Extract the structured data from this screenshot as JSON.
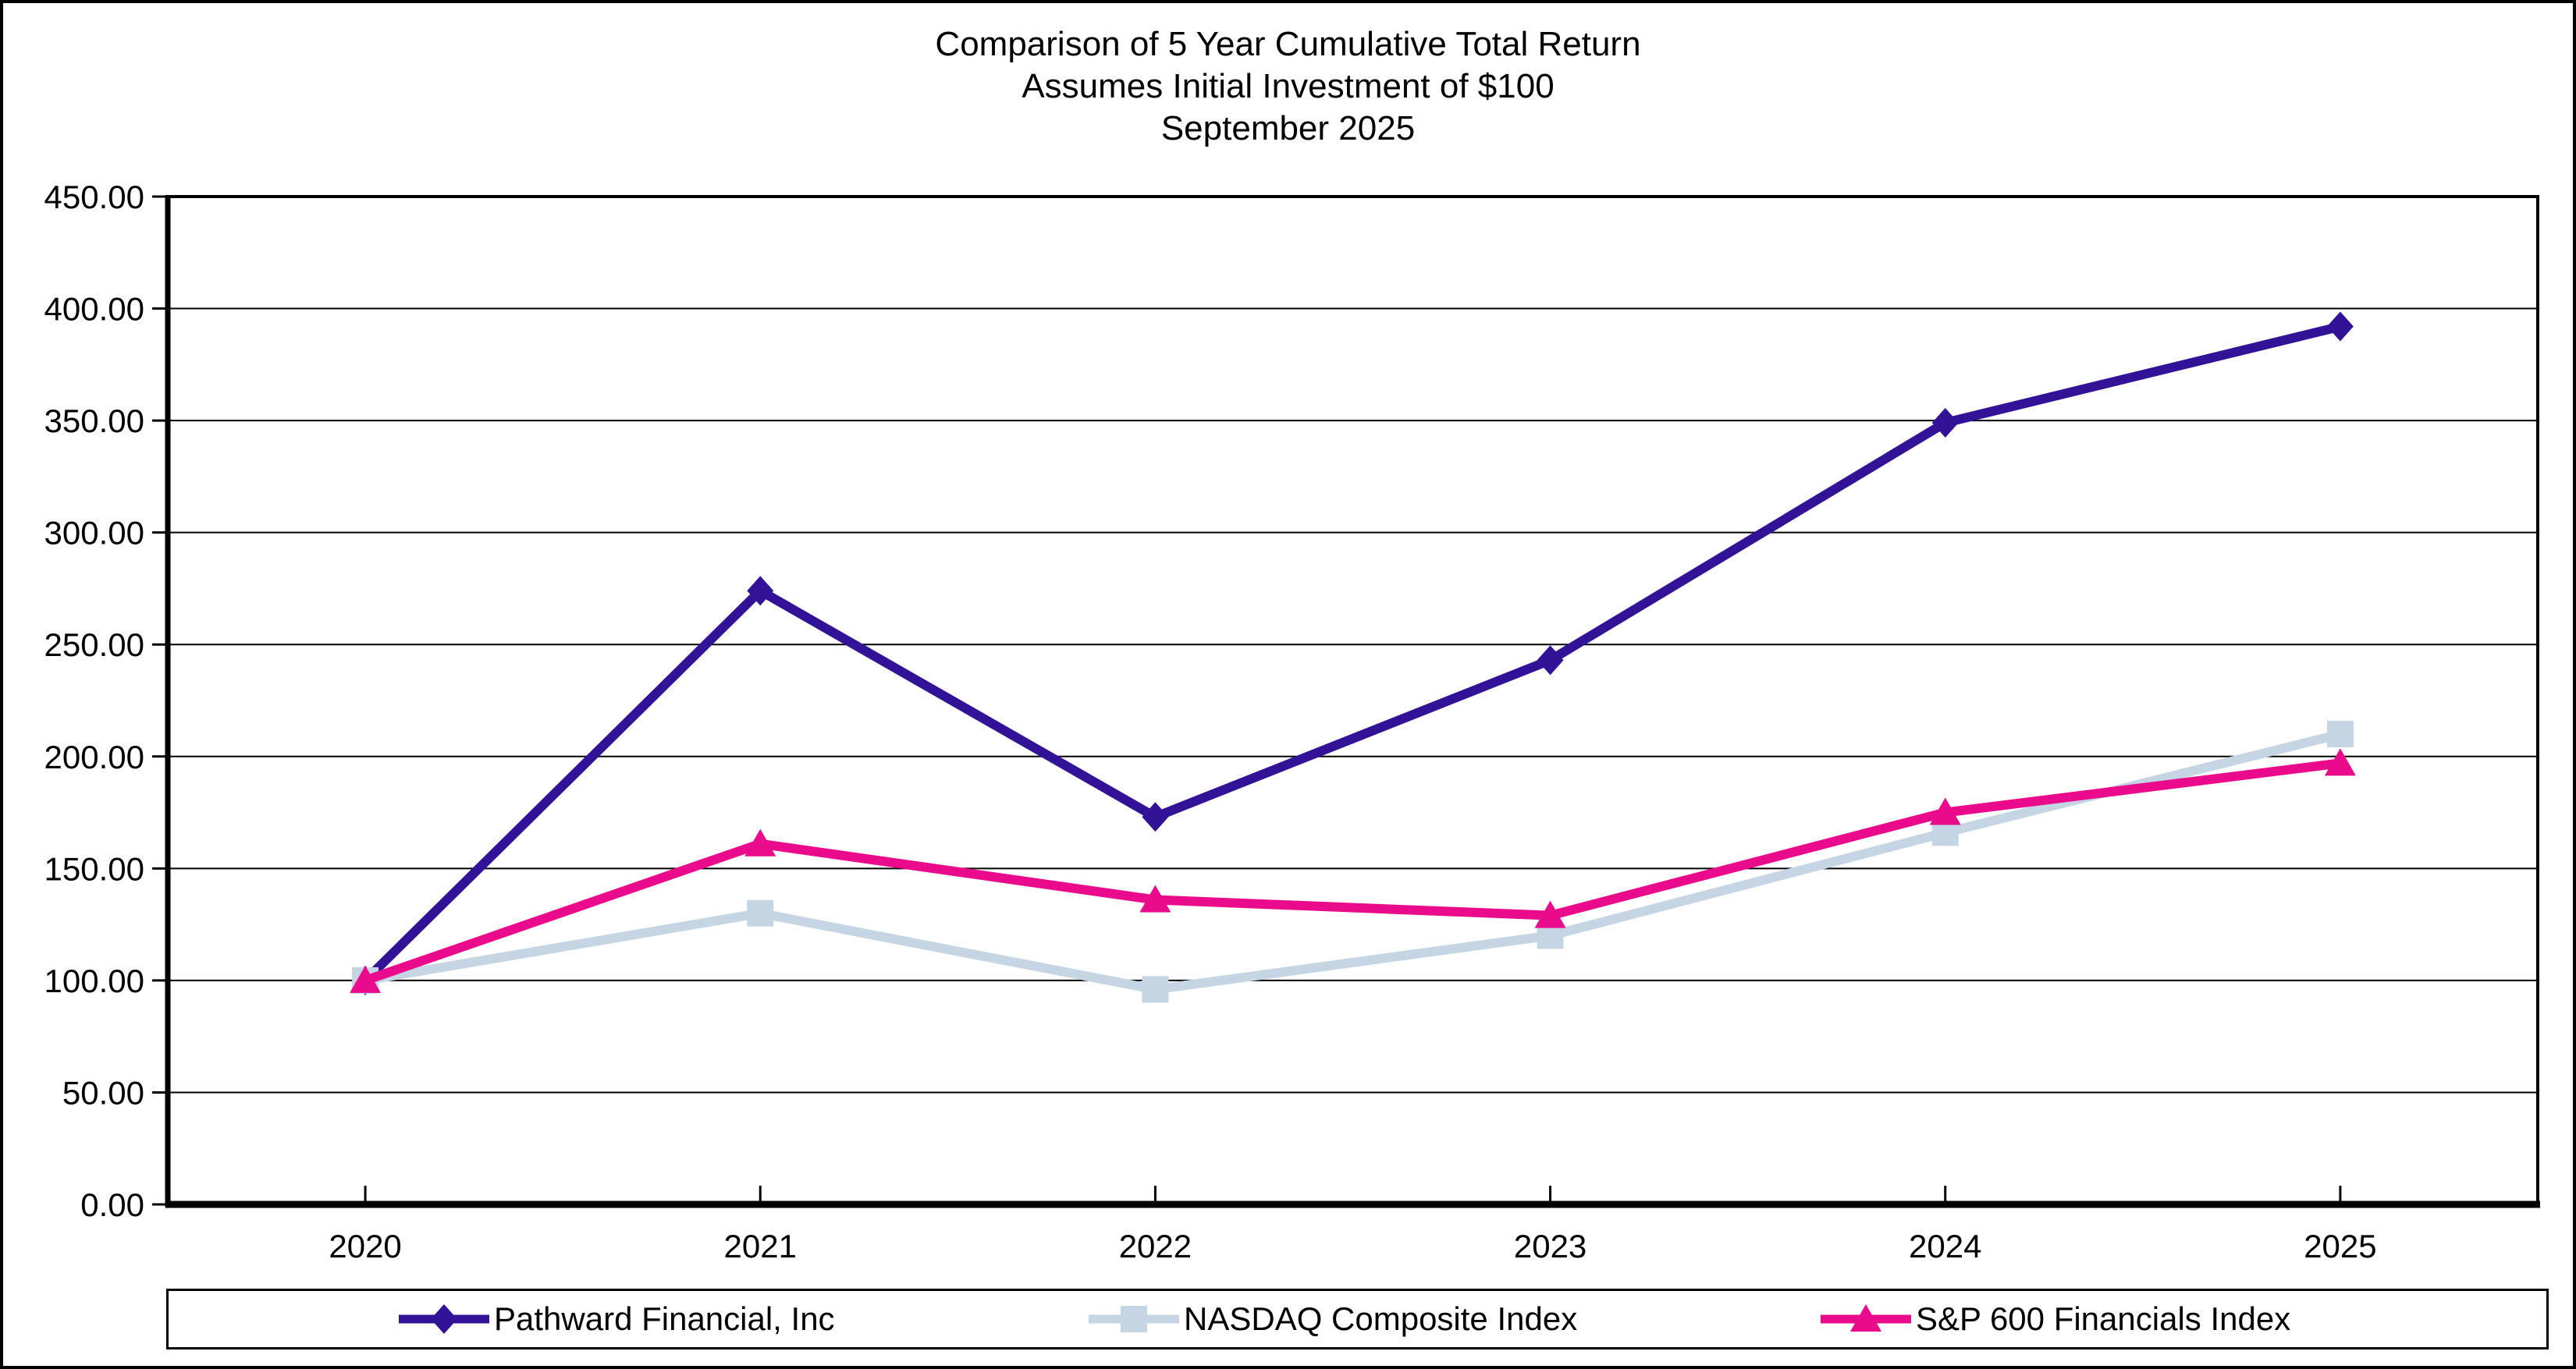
{
  "window": {
    "background": "#ffffff",
    "border_color": "#000000"
  },
  "title": {
    "line1": "Comparison of 5 Year Cumulative Total Return",
    "line2": "Assumes Initial Investment of $100",
    "line3": "September 2025"
  },
  "chart_data": {
    "type": "line",
    "title": "Comparison of 5 Year Cumulative Total Return",
    "subtitle1": "Assumes Initial Investment of $100",
    "subtitle2": "September 2025",
    "categories": [
      "2020",
      "2021",
      "2022",
      "2023",
      "2024",
      "2025"
    ],
    "series": [
      {
        "name": "Pathward Financial, Inc",
        "marker": "diamond",
        "color": "#321398",
        "values": [
          100,
          274,
          173,
          243,
          349,
          392
        ]
      },
      {
        "name": "NASDAQ Composite Index",
        "marker": "square",
        "color": "#C6D5E4",
        "values": [
          100,
          130,
          96,
          120,
          166,
          210
        ]
      },
      {
        "name": "S&P 600 Financials Index",
        "marker": "triangle",
        "color": "#EA0B8C",
        "values": [
          100,
          161,
          136,
          129,
          175,
          197
        ]
      }
    ],
    "xlabel": "",
    "ylabel": "",
    "ylim": [
      0,
      450
    ],
    "y_tick_step": 50,
    "y_tick_labels": [
      "0.00",
      "50.00",
      "100.00",
      "150.00",
      "200.00",
      "250.00",
      "300.00",
      "350.00",
      "400.00",
      "450.00"
    ],
    "grid": "horizontal-only",
    "gridline_color": "#000000",
    "axis_color": "#000000",
    "legend_position": "bottom"
  }
}
